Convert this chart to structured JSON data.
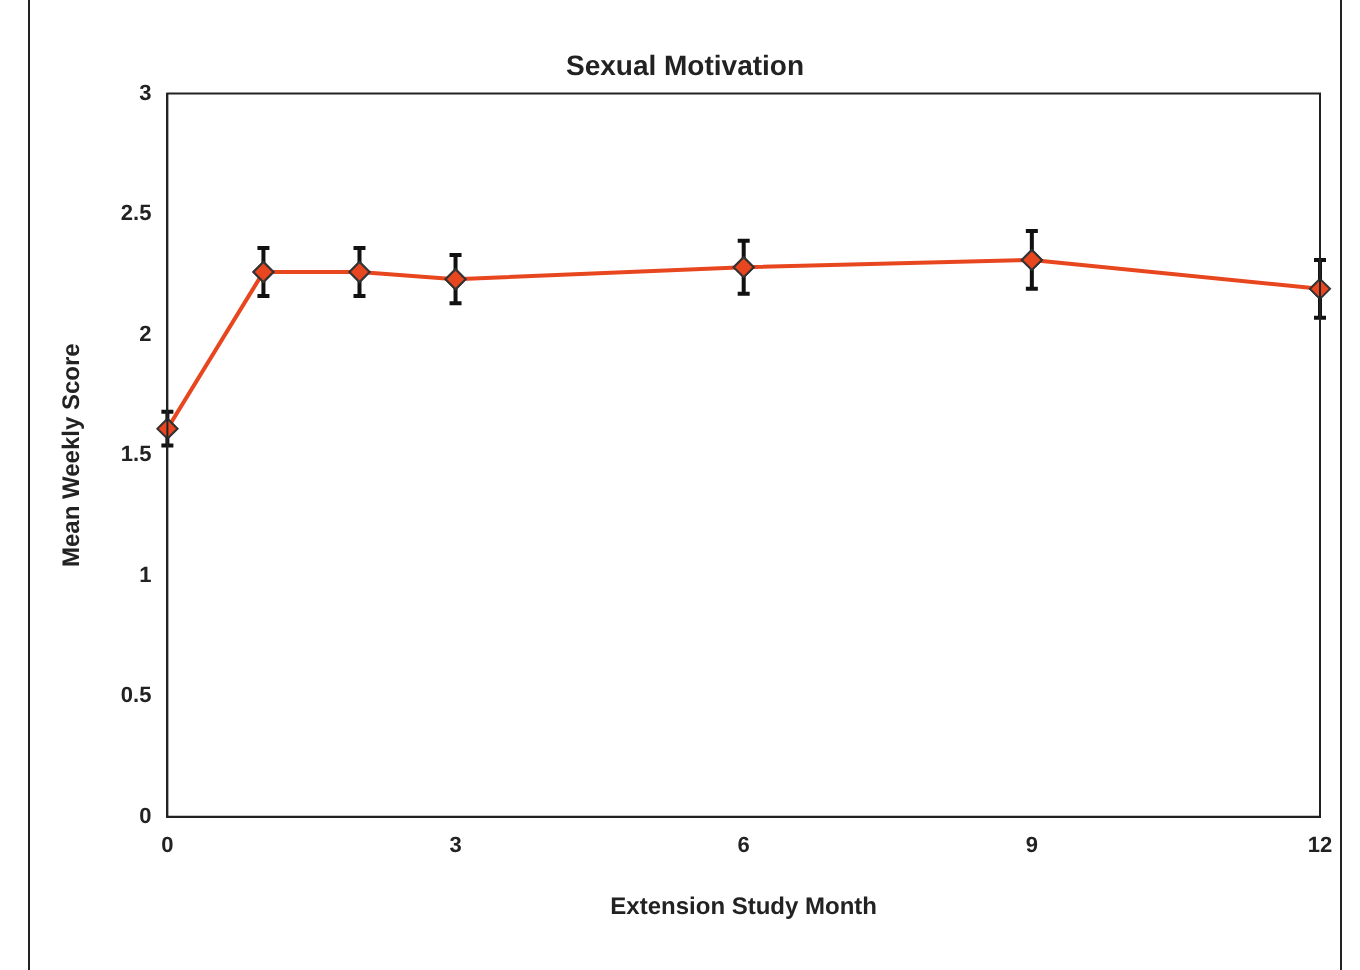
{
  "chart_data": {
    "type": "line",
    "title": "Sexual Motivation",
    "xlabel": "Extension Study Month",
    "ylabel": "Mean Weekly Score",
    "x": [
      0,
      1,
      2,
      3,
      6,
      9,
      12
    ],
    "series": [
      {
        "color": "#e8461e",
        "values": [
          1.61,
          2.26,
          2.26,
          2.23,
          2.28,
          2.31,
          2.19
        ],
        "errors": [
          0.07,
          0.1,
          0.1,
          0.1,
          0.11,
          0.12,
          0.12
        ]
      }
    ],
    "xlim": [
      0,
      12
    ],
    "xticks": [
      0,
      3,
      6,
      9,
      12
    ],
    "ylim": [
      0,
      3
    ],
    "yticks": [
      0,
      0.5,
      1,
      1.5,
      2,
      2.5,
      3
    ],
    "grid": false,
    "legend": false,
    "marker": "diamond",
    "line_style": "solid"
  }
}
